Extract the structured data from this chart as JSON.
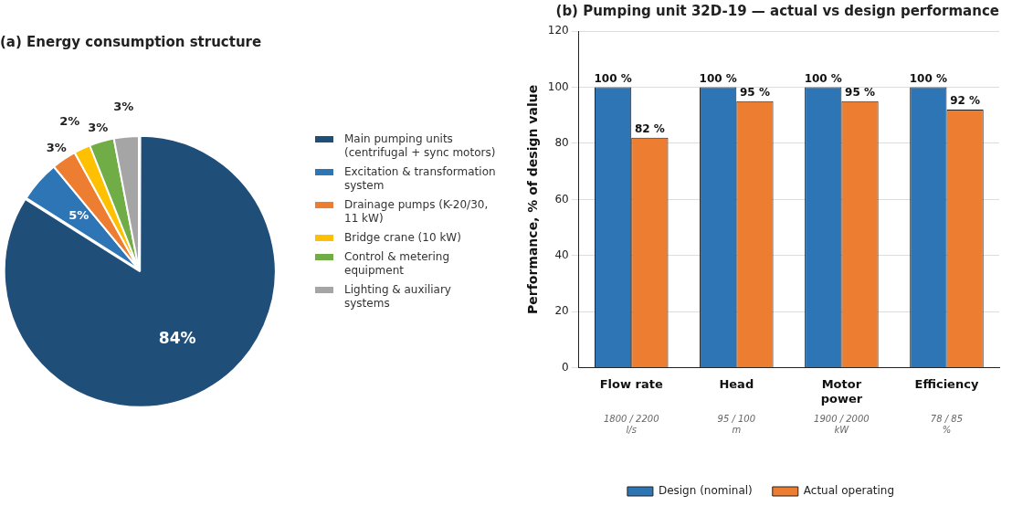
{
  "chart_data": [
    {
      "type": "pie",
      "title": "(a) Energy consumption structure",
      "categories": [
        "Main pumping units (centrifugal + sync motors)",
        "Excitation & transformation system",
        "Drainage pumps (K-20/30, 11 kW)",
        "Bridge crane (10 kW)",
        "Control & metering equipment",
        "Lighting & auxiliary systems"
      ],
      "values": [
        84,
        5,
        3,
        2,
        3,
        3
      ],
      "colors": [
        "#1f4e79",
        "#2e75b6",
        "#ed7d31",
        "#ffc000",
        "#70ad47",
        "#a5a5a5"
      ],
      "value_labels": [
        "84%",
        "5%",
        "3%",
        "2%",
        "3%",
        "3%"
      ],
      "legend": "right"
    },
    {
      "type": "bar",
      "title": "(b) Pumping unit 32D-19 — actual vs design performance",
      "ylabel": "Performance, % of design value",
      "categories": [
        "Flow rate",
        "Head",
        "Motor power",
        "Efficiency"
      ],
      "series": [
        {
          "name": "Design (nominal)",
          "color": "#2e75b6",
          "values": [
            100,
            100,
            100,
            100
          ],
          "value_labels": [
            "100 %",
            "100 %",
            "100 %",
            "100 %"
          ]
        },
        {
          "name": "Actual operating",
          "color": "#ed7d31",
          "values": [
            82,
            95,
            95,
            92
          ],
          "value_labels": [
            "82 %",
            "95 %",
            "95 %",
            "92 %"
          ]
        }
      ],
      "ylim": [
        0,
        120
      ],
      "yticks": [
        0,
        20,
        40,
        60,
        80,
        100,
        120
      ],
      "grid": "y",
      "legend": "bottom",
      "annotations": [
        "1800 / 2200\nl/s",
        "95 / 100\nm",
        "1900 / 2000\nkW",
        "78 / 85\n%"
      ]
    }
  ]
}
